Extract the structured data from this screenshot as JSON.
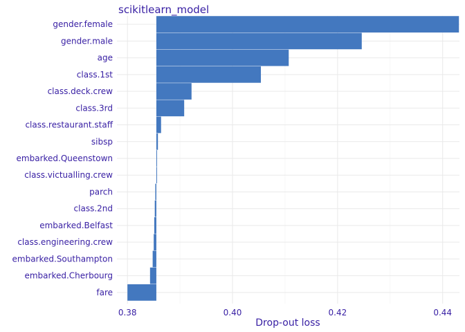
{
  "chart_data": {
    "type": "bar",
    "title": "scikitlearn_model",
    "xlabel": "Drop-out loss",
    "ylabel": "",
    "baseline": 0.3855,
    "xlim": [
      0.378,
      0.4432
    ],
    "xticks": [
      0.38,
      0.4,
      0.42,
      0.44
    ],
    "xtick_labels": [
      "0.38",
      "0.40",
      "0.42",
      "0.44"
    ],
    "grid": true,
    "legend": "none",
    "categories": [
      "gender.female",
      "gender.male",
      "age",
      "class.1st",
      "class.deck.crew",
      "class.3rd",
      "class.restaurant.staff",
      "sibsp",
      "embarked.Queenstown",
      "class.victualling.crew",
      "parch",
      "class.2nd",
      "embarked.Belfast",
      "class.engineering.crew",
      "embarked.Southampton",
      "embarked.Cherbourg",
      "fare"
    ],
    "values": [
      0.4431,
      0.4246,
      0.4107,
      0.4054,
      0.3922,
      0.3908,
      0.3864,
      0.3858,
      0.3856,
      0.3855,
      0.3853,
      0.3852,
      0.3851,
      0.385,
      0.3848,
      0.3843,
      0.38
    ],
    "colors": {
      "bar": "#4378bf",
      "label": "#371ea3",
      "grid": "#e9e9e9"
    }
  }
}
